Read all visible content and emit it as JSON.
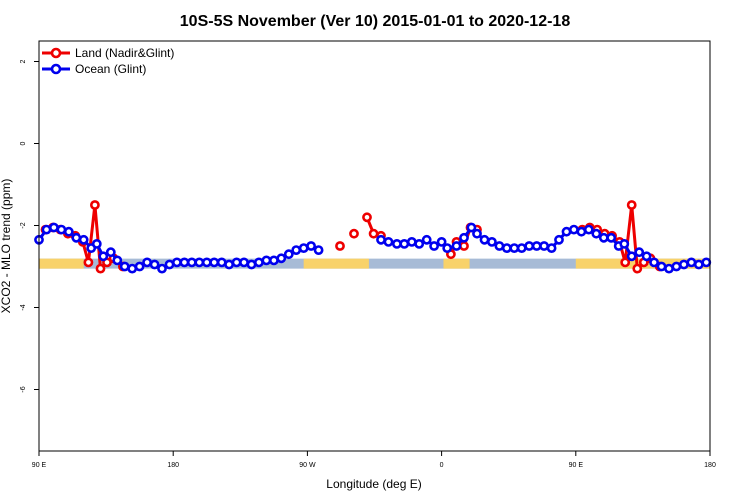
{
  "chart_data": {
    "type": "line",
    "title": "10S-5S November (Ver 10)   2015-01-01 to 2020-12-18",
    "xlabel": "Longitude (deg E)",
    "ylabel": "XCO2 - MLO trend (ppm)",
    "xlim": [
      90,
      450
    ],
    "ylim": [
      -7.5,
      2.5
    ],
    "x_ticks": [
      {
        "value": 90,
        "label": "90 E"
      },
      {
        "value": 162,
        "label": "180"
      },
      {
        "value": 234,
        "label": "90 W"
      },
      {
        "value": 306,
        "label": "0"
      },
      {
        "value": 378,
        "label": "90 E"
      },
      {
        "value": 450,
        "label": "180"
      }
    ],
    "y_ticks": [
      {
        "value": 2,
        "label": "2"
      },
      {
        "value": 0,
        "label": "0"
      },
      {
        "value": -2,
        "label": "-2"
      },
      {
        "value": -4,
        "label": "-4"
      },
      {
        "value": -6,
        "label": "-6"
      }
    ],
    "legend_position": "top-left",
    "land_band_y": -2.93,
    "land_segments": [
      [
        90,
        114
      ],
      [
        232,
        267
      ],
      [
        307,
        321
      ],
      [
        378,
        450
      ]
    ],
    "land_color": "#f8d26a",
    "ocean_color": "#a7bbd6",
    "series": [
      {
        "name": "Land (Nadir&Glint)",
        "color": "#ee0000",
        "points": [
          [
            93.5,
            -2.1
          ],
          [
            97.5,
            -2.05
          ],
          [
            101.5,
            -2.1
          ],
          [
            105.5,
            -2.2
          ],
          [
            109.5,
            -2.25
          ],
          [
            113.5,
            -2.4
          ],
          [
            116.5,
            -2.9
          ],
          [
            120,
            -1.5
          ],
          [
            123,
            -3.05
          ],
          [
            126.5,
            -2.9
          ],
          [
            130,
            -2.8
          ],
          [
            135,
            -3.0
          ],
          [
            251.5,
            -2.5
          ],
          [
            259,
            -2.2
          ],
          [
            266,
            -1.8
          ],
          [
            269.5,
            -2.2
          ],
          [
            273.5,
            -2.25
          ],
          [
            311,
            -2.7
          ],
          [
            314,
            -2.4
          ],
          [
            318,
            -2.5
          ],
          [
            321.5,
            -2.05
          ],
          [
            325,
            -2.1
          ],
          [
            381.5,
            -2.1
          ],
          [
            385.5,
            -2.05
          ],
          [
            389.5,
            -2.1
          ],
          [
            393.5,
            -2.2
          ],
          [
            397.5,
            -2.25
          ],
          [
            401.5,
            -2.4
          ],
          [
            404.5,
            -2.9
          ],
          [
            408,
            -1.5
          ],
          [
            411,
            -3.05
          ],
          [
            414.5,
            -2.9
          ],
          [
            418,
            -2.8
          ],
          [
            423,
            -3.0
          ]
        ]
      },
      {
        "name": "Ocean (Glint)",
        "color": "#0000ee",
        "points": [
          [
            90,
            -2.35
          ],
          [
            94,
            -2.1
          ],
          [
            98,
            -2.05
          ],
          [
            102,
            -2.1
          ],
          [
            106,
            -2.15
          ],
          [
            110,
            -2.3
          ],
          [
            114,
            -2.35
          ],
          [
            118,
            -2.55
          ],
          [
            121,
            -2.45
          ],
          [
            124.5,
            -2.75
          ],
          [
            128.5,
            -2.65
          ],
          [
            132,
            -2.85
          ],
          [
            136,
            -3.0
          ],
          [
            140,
            -3.05
          ],
          [
            144,
            -3.0
          ],
          [
            148,
            -2.9
          ],
          [
            152,
            -2.95
          ],
          [
            156,
            -3.05
          ],
          [
            160,
            -2.95
          ],
          [
            164,
            -2.9
          ],
          [
            168,
            -2.9
          ],
          [
            172,
            -2.9
          ],
          [
            176,
            -2.9
          ],
          [
            180,
            -2.9
          ],
          [
            184,
            -2.9
          ],
          [
            188,
            -2.9
          ],
          [
            192,
            -2.95
          ],
          [
            196,
            -2.9
          ],
          [
            200,
            -2.9
          ],
          [
            204,
            -2.95
          ],
          [
            208,
            -2.9
          ],
          [
            212,
            -2.85
          ],
          [
            216,
            -2.85
          ],
          [
            220,
            -2.8
          ],
          [
            224,
            -2.7
          ],
          [
            228,
            -2.6
          ],
          [
            232,
            -2.55
          ],
          [
            236,
            -2.5
          ],
          [
            240,
            -2.6
          ],
          [
            273.5,
            -2.35
          ],
          [
            277.5,
            -2.4
          ],
          [
            282,
            -2.45
          ],
          [
            286,
            -2.45
          ],
          [
            290,
            -2.4
          ],
          [
            294,
            -2.45
          ],
          [
            298,
            -2.35
          ],
          [
            302,
            -2.5
          ],
          [
            306,
            -2.4
          ],
          [
            309,
            -2.55
          ],
          [
            314,
            -2.5
          ],
          [
            318,
            -2.3
          ],
          [
            322,
            -2.05
          ],
          [
            325,
            -2.2
          ],
          [
            329,
            -2.35
          ],
          [
            333,
            -2.4
          ],
          [
            337,
            -2.5
          ],
          [
            341,
            -2.55
          ],
          [
            345,
            -2.55
          ],
          [
            349,
            -2.55
          ],
          [
            353,
            -2.5
          ],
          [
            357,
            -2.5
          ],
          [
            361,
            -2.5
          ],
          [
            365,
            -2.55
          ],
          [
            369,
            -2.35
          ],
          [
            373,
            -2.15
          ],
          [
            377,
            -2.1
          ],
          [
            381,
            -2.15
          ],
          [
            385,
            -2.1
          ],
          [
            389,
            -2.2
          ],
          [
            393,
            -2.3
          ],
          [
            397,
            -2.3
          ],
          [
            401,
            -2.5
          ],
          [
            404,
            -2.45
          ],
          [
            408,
            -2.75
          ],
          [
            412,
            -2.65
          ],
          [
            416,
            -2.75
          ],
          [
            420,
            -2.9
          ],
          [
            424,
            -3.0
          ],
          [
            428,
            -3.05
          ],
          [
            432,
            -3.0
          ],
          [
            436,
            -2.95
          ],
          [
            440,
            -2.9
          ],
          [
            444,
            -2.95
          ],
          [
            448,
            -2.9
          ]
        ]
      }
    ]
  }
}
